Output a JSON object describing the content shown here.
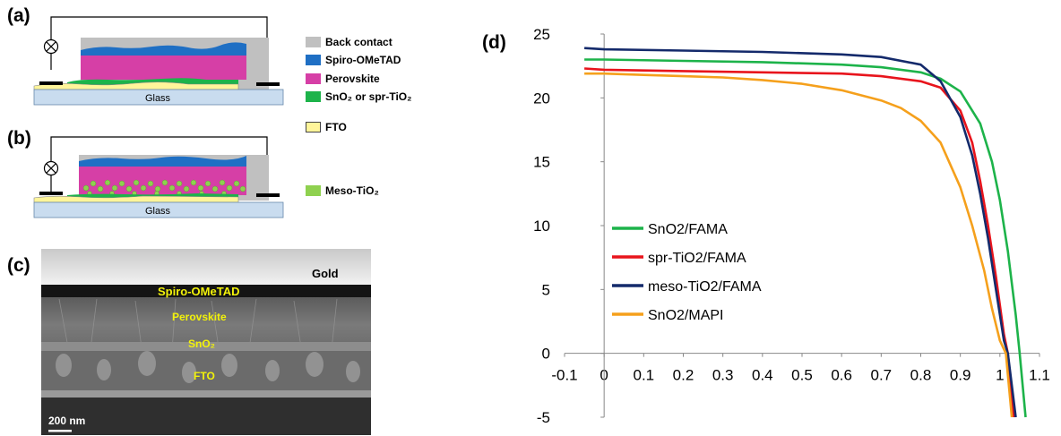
{
  "panels": {
    "a": "(a)",
    "b": "(b)",
    "c": "(c)",
    "d": "(d)"
  },
  "glass_label": "Glass",
  "legend": [
    {
      "label": "Back contact",
      "color": "#c0c0c0"
    },
    {
      "label": "Spiro-OMeTAD",
      "color": "#1f6fc4"
    },
    {
      "label": "Perovskite",
      "color": "#d63fa6"
    },
    {
      "label": "SnO₂ or spr-TiO₂",
      "color": "#1db34a"
    },
    {
      "label": "FTO",
      "color": "#fff59a"
    },
    {
      "label": "Meso-TiO₂",
      "color": "#8fd14f"
    }
  ],
  "sem": {
    "layers": [
      "Gold",
      "Spiro-OMeTAD",
      "Perovskite",
      "SnO₂",
      "FTO"
    ],
    "scale_bar": "200 nm"
  },
  "chart_data": {
    "type": "line",
    "xlim": [
      -0.1,
      1.1
    ],
    "ylim": [
      -5,
      25
    ],
    "xticks": [
      -0.1,
      0,
      0.1,
      0.2,
      0.3,
      0.4,
      0.5,
      0.6,
      0.7,
      0.8,
      0.9,
      1,
      1.1
    ],
    "yticks": [
      -5,
      0,
      5,
      10,
      15,
      20,
      25
    ],
    "legend_position": "lower-left",
    "grid": false,
    "series": [
      {
        "name": "SnO2/FAMA",
        "color": "#1db34a",
        "x": [
          -0.05,
          0.0,
          0.2,
          0.4,
          0.6,
          0.7,
          0.8,
          0.85,
          0.9,
          0.95,
          0.98,
          1.0,
          1.02,
          1.04,
          1.05,
          1.065
        ],
        "y": [
          23.0,
          23.0,
          22.9,
          22.8,
          22.6,
          22.4,
          22.0,
          21.5,
          20.5,
          18.0,
          15.0,
          12.0,
          8.0,
          3.0,
          0.0,
          -5.0
        ]
      },
      {
        "name": "spr-TiO2/FAMA",
        "color": "#e8141c",
        "x": [
          -0.05,
          0.0,
          0.2,
          0.4,
          0.6,
          0.7,
          0.8,
          0.85,
          0.9,
          0.93,
          0.95,
          0.97,
          0.99,
          1.01,
          1.02,
          1.035
        ],
        "y": [
          22.3,
          22.2,
          22.1,
          22.0,
          21.9,
          21.7,
          21.3,
          20.8,
          19.0,
          16.5,
          13.5,
          10.0,
          6.0,
          1.5,
          0.0,
          -5.0
        ]
      },
      {
        "name": "meso-TiO2/FAMA",
        "color": "#142a6b",
        "x": [
          -0.05,
          0.0,
          0.2,
          0.4,
          0.6,
          0.7,
          0.8,
          0.85,
          0.9,
          0.93,
          0.95,
          0.97,
          0.99,
          1.01,
          1.02,
          1.04
        ],
        "y": [
          23.9,
          23.8,
          23.7,
          23.6,
          23.4,
          23.2,
          22.6,
          21.3,
          18.5,
          15.5,
          12.5,
          9.0,
          5.0,
          1.0,
          0.0,
          -5.0
        ]
      },
      {
        "name": "SnO2/MAPI",
        "color": "#f5a01c",
        "x": [
          -0.05,
          0.0,
          0.1,
          0.2,
          0.3,
          0.4,
          0.5,
          0.6,
          0.7,
          0.75,
          0.8,
          0.85,
          0.9,
          0.93,
          0.96,
          0.98,
          1.0,
          1.015,
          1.03
        ],
        "y": [
          21.9,
          21.9,
          21.8,
          21.7,
          21.6,
          21.4,
          21.1,
          20.6,
          19.8,
          19.2,
          18.2,
          16.5,
          13.0,
          10.0,
          6.5,
          3.5,
          1.0,
          0.0,
          -5.0
        ]
      }
    ]
  }
}
